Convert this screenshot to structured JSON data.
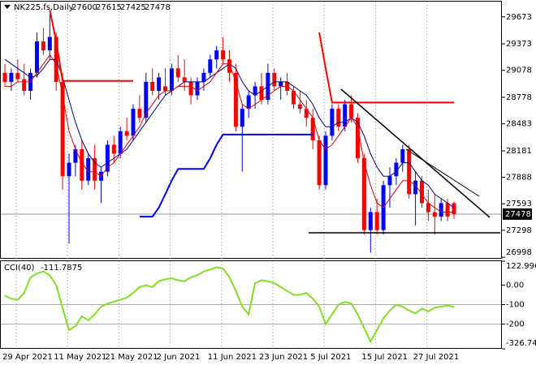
{
  "chart_data": [
    {
      "type": "candlestick",
      "title": "NK225.fs,Daily",
      "categories": [
        "29 Apr 2021",
        null,
        null,
        null,
        null,
        null,
        null,
        null,
        "11 May 2021",
        null,
        null,
        null,
        null,
        null,
        null,
        null,
        "21 May 2021",
        null,
        null,
        null,
        null,
        null,
        null,
        null,
        "2 Jun 2021",
        null,
        null,
        null,
        null,
        null,
        null,
        null,
        "11 Jun 2021",
        null,
        null,
        null,
        null,
        null,
        null,
        null,
        "23 Jun 2021",
        null,
        null,
        null,
        null,
        null,
        null,
        null,
        "5 Jul 2021",
        null,
        null,
        null,
        null,
        null,
        null,
        null,
        "15 Jul 2021",
        null,
        null,
        null,
        null,
        null,
        null,
        null,
        "27 Jul 2021",
        null,
        null,
        null,
        null,
        null,
        null
      ],
      "open": [
        29050,
        28950,
        29050,
        28980,
        28850,
        29050,
        29400,
        29300,
        29450,
        28950,
        27900,
        28050,
        28200,
        27850,
        28100,
        27850,
        27950,
        28250,
        28150,
        28400,
        28350,
        28650,
        28550,
        28950,
        28850,
        28900,
        28850,
        29100,
        29000,
        28950,
        28800,
        28950,
        29050,
        29200,
        29300,
        29200,
        29050,
        28450,
        28650,
        28800,
        28900,
        28750,
        29050,
        28900,
        28950,
        28850,
        28700,
        28650,
        28550,
        28300,
        27800,
        28350,
        28650,
        28450,
        28700,
        28550,
        28100,
        27300,
        27500,
        27300,
        27800,
        27900,
        28050,
        28200,
        27700,
        27850,
        27600,
        27500,
        27450,
        27600,
        27600
      ],
      "high": [
        29150,
        29100,
        29200,
        29150,
        29100,
        29500,
        29550,
        29700,
        29500,
        29050,
        28150,
        28250,
        28300,
        28150,
        28250,
        28000,
        28300,
        28350,
        28450,
        28550,
        28700,
        28800,
        29050,
        29100,
        29050,
        29100,
        29150,
        29250,
        29200,
        29000,
        29000,
        29100,
        29250,
        29350,
        29450,
        29300,
        29150,
        28700,
        28850,
        28950,
        29050,
        29150,
        29100,
        29000,
        29050,
        28900,
        28850,
        28750,
        28650,
        28350,
        28400,
        28700,
        28700,
        28750,
        28800,
        28600,
        28150,
        27550,
        27650,
        27850,
        28000,
        28100,
        28250,
        28250,
        27950,
        27900,
        27750,
        27700,
        27650,
        27650,
        27615
      ],
      "low": [
        28900,
        28850,
        28950,
        28800,
        28750,
        29000,
        29250,
        29200,
        28850,
        27750,
        27150,
        27900,
        27750,
        27800,
        27750,
        27600,
        27900,
        28050,
        28100,
        28300,
        28300,
        28500,
        28500,
        28800,
        28750,
        28800,
        28800,
        28950,
        28850,
        28700,
        28750,
        28850,
        29000,
        29100,
        29150,
        28950,
        28400,
        27950,
        28550,
        28650,
        28700,
        28700,
        28850,
        28750,
        28800,
        28650,
        28600,
        28450,
        28200,
        27750,
        27750,
        28300,
        28400,
        28400,
        28500,
        28050,
        27250,
        27050,
        27250,
        27250,
        27550,
        27800,
        27950,
        27650,
        27350,
        27550,
        27400,
        27250,
        27400,
        27400,
        27425
      ],
      "close": [
        28950,
        29050,
        28980,
        28850,
        29050,
        29400,
        29300,
        29450,
        28950,
        27900,
        28050,
        28200,
        27850,
        28100,
        27850,
        27950,
        28250,
        28150,
        28400,
        28350,
        28650,
        28550,
        28950,
        28850,
        29000,
        28850,
        29100,
        29000,
        28950,
        28800,
        28950,
        29050,
        29200,
        29300,
        29200,
        29050,
        28450,
        28650,
        28800,
        28900,
        28750,
        29050,
        28900,
        28950,
        28850,
        28700,
        28650,
        28550,
        28300,
        27800,
        28350,
        28650,
        28450,
        28700,
        28550,
        28100,
        27300,
        27500,
        27300,
        27800,
        27900,
        28050,
        28200,
        27700,
        27850,
        27600,
        27500,
        27450,
        27600,
        27450,
        27478
      ],
      "up_color": "#0000ff",
      "down_color": "#ff0000",
      "series": [
        {
          "color": "#000080",
          "width": 1,
          "values": [
            29200,
            29150,
            29100,
            29050,
            29000,
            29020,
            29100,
            29200,
            29200,
            29000,
            28750,
            28500,
            28300,
            28150,
            28050,
            28000,
            28050,
            28100,
            28150,
            28200,
            28300,
            28400,
            28500,
            28600,
            28700,
            28800,
            28850,
            28900,
            28950,
            28950,
            28950,
            28950,
            29000,
            29050,
            29100,
            29150,
            29100,
            28950,
            28850,
            28800,
            28850,
            28900,
            28950,
            28950,
            28950,
            28900,
            28850,
            28800,
            28700,
            28550,
            28450,
            28450,
            28500,
            28500,
            28550,
            28500,
            28350,
            28150,
            28000,
            27900,
            27900,
            27950,
            28050,
            28050,
            27950,
            27850,
            27800,
            27700,
            27650,
            27600,
            27550
          ]
        },
        {
          "color": "#e00000",
          "width": 1,
          "values": [
            28900,
            28900,
            28950,
            28950,
            28950,
            29050,
            29150,
            29250,
            29150,
            28800,
            28400,
            28200,
            28050,
            27950,
            27950,
            27900,
            28000,
            28050,
            28150,
            28250,
            28350,
            28450,
            28600,
            28700,
            28800,
            28850,
            28850,
            28900,
            28900,
            28900,
            28850,
            28900,
            28950,
            29050,
            29150,
            29150,
            28950,
            28700,
            28650,
            28700,
            28750,
            28800,
            28850,
            28900,
            28900,
            28850,
            28750,
            28650,
            28550,
            28300,
            28200,
            28250,
            28350,
            28450,
            28550,
            28450,
            28050,
            27800,
            27600,
            27550,
            27650,
            27750,
            27850,
            27850,
            27800,
            27700,
            27600,
            27550,
            27500,
            27500,
            27500
          ]
        },
        {
          "color": "#ff0000",
          "width": 2,
          "values": [
            null,
            null,
            null,
            null,
            null,
            null,
            null,
            29750,
            29400,
            28960,
            28960,
            28960,
            28960,
            28960,
            28960,
            28960,
            28960,
            28960,
            28960,
            28960,
            28960,
            null,
            null,
            null,
            null,
            null,
            null,
            null,
            null,
            null,
            null,
            null,
            null,
            null,
            null,
            null,
            null,
            null,
            null,
            null,
            null,
            null,
            null,
            null,
            null,
            null,
            null,
            null,
            null,
            29500,
            29100,
            28720,
            28720,
            28720,
            28720,
            28720,
            28720,
            28720,
            28720,
            28720,
            28720,
            28720,
            28720,
            28720,
            28720,
            28720,
            28720,
            28720,
            28720,
            28720,
            28720
          ]
        },
        {
          "color": "#0000ff",
          "width": 2,
          "values": [
            null,
            null,
            null,
            null,
            null,
            null,
            null,
            null,
            null,
            null,
            null,
            null,
            null,
            null,
            null,
            null,
            null,
            null,
            null,
            null,
            null,
            27450,
            27450,
            27450,
            27550,
            27700,
            27850,
            27980,
            27980,
            27980,
            27980,
            27980,
            28100,
            28250,
            28363,
            28363,
            28363,
            28363,
            28363,
            28363,
            28363,
            28363,
            28363,
            28363,
            28363,
            28363,
            28363,
            28363,
            28363,
            null,
            null,
            null,
            null,
            null,
            null,
            null,
            null,
            null,
            null,
            null,
            null,
            null,
            null,
            null,
            null,
            null,
            null,
            null,
            null,
            null,
            null
          ]
        }
      ],
      "ylim": [
        26990,
        29843
      ],
      "yticks": [
        29673,
        29373,
        29078,
        28778,
        28483,
        28181,
        27888,
        27593,
        27298,
        26998
      ]
    },
    {
      "type": "line",
      "title": "CCI(40)",
      "series": [
        {
          "color": "#80e020",
          "width": 2,
          "values": [
            -54,
            -70,
            -75,
            -40,
            40,
            60,
            70,
            50,
            0,
            -117,
            -230,
            -210,
            -160,
            -180,
            -150,
            -110,
            -95,
            -85,
            -75,
            -65,
            -40,
            -10,
            0,
            -10,
            20,
            30,
            35,
            25,
            20,
            40,
            50,
            70,
            80,
            92,
            85,
            40,
            -30,
            -110,
            -150,
            10,
            25,
            20,
            10,
            -10,
            -30,
            -50,
            -50,
            -40,
            -70,
            -110,
            -200,
            -150,
            -100,
            -85,
            -95,
            -150,
            -220,
            -290,
            -230,
            -170,
            -130,
            -100,
            -110,
            -130,
            -145,
            -120,
            -135,
            -115,
            -110,
            -105,
            -111.7875
          ]
        }
      ],
      "ylim": [
        -326.744,
        122.9967
      ],
      "yticks": [
        122.9967,
        {
          "value": 0,
          "label": "0.00"
        },
        -100,
        -200,
        -326.744
      ],
      "levels": [
        -100,
        -200
      ]
    }
  ]
}
